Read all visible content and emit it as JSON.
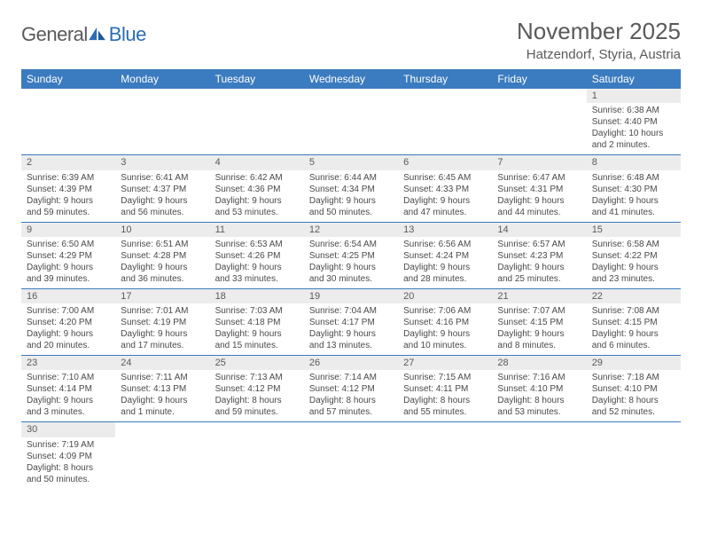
{
  "logo": {
    "general": "General",
    "blue": "Blue"
  },
  "header": {
    "month": "November 2025",
    "location": "Hatzendorf, Styria, Austria"
  },
  "colors": {
    "header_bg": "#3b7bbf",
    "header_fg": "#ffffff",
    "daynum_bg": "#ececec",
    "text": "#4a4a4a",
    "border": "#3b7bbf"
  },
  "dayNames": [
    "Sunday",
    "Monday",
    "Tuesday",
    "Wednesday",
    "Thursday",
    "Friday",
    "Saturday"
  ],
  "weeks": [
    [
      null,
      null,
      null,
      null,
      null,
      null,
      {
        "n": "1",
        "sr": "6:38 AM",
        "ss": "4:40 PM",
        "dl": "Daylight: 10 hours and 2 minutes."
      }
    ],
    [
      {
        "n": "2",
        "sr": "6:39 AM",
        "ss": "4:39 PM",
        "dl": "Daylight: 9 hours and 59 minutes."
      },
      {
        "n": "3",
        "sr": "6:41 AM",
        "ss": "4:37 PM",
        "dl": "Daylight: 9 hours and 56 minutes."
      },
      {
        "n": "4",
        "sr": "6:42 AM",
        "ss": "4:36 PM",
        "dl": "Daylight: 9 hours and 53 minutes."
      },
      {
        "n": "5",
        "sr": "6:44 AM",
        "ss": "4:34 PM",
        "dl": "Daylight: 9 hours and 50 minutes."
      },
      {
        "n": "6",
        "sr": "6:45 AM",
        "ss": "4:33 PM",
        "dl": "Daylight: 9 hours and 47 minutes."
      },
      {
        "n": "7",
        "sr": "6:47 AM",
        "ss": "4:31 PM",
        "dl": "Daylight: 9 hours and 44 minutes."
      },
      {
        "n": "8",
        "sr": "6:48 AM",
        "ss": "4:30 PM",
        "dl": "Daylight: 9 hours and 41 minutes."
      }
    ],
    [
      {
        "n": "9",
        "sr": "6:50 AM",
        "ss": "4:29 PM",
        "dl": "Daylight: 9 hours and 39 minutes."
      },
      {
        "n": "10",
        "sr": "6:51 AM",
        "ss": "4:28 PM",
        "dl": "Daylight: 9 hours and 36 minutes."
      },
      {
        "n": "11",
        "sr": "6:53 AM",
        "ss": "4:26 PM",
        "dl": "Daylight: 9 hours and 33 minutes."
      },
      {
        "n": "12",
        "sr": "6:54 AM",
        "ss": "4:25 PM",
        "dl": "Daylight: 9 hours and 30 minutes."
      },
      {
        "n": "13",
        "sr": "6:56 AM",
        "ss": "4:24 PM",
        "dl": "Daylight: 9 hours and 28 minutes."
      },
      {
        "n": "14",
        "sr": "6:57 AM",
        "ss": "4:23 PM",
        "dl": "Daylight: 9 hours and 25 minutes."
      },
      {
        "n": "15",
        "sr": "6:58 AM",
        "ss": "4:22 PM",
        "dl": "Daylight: 9 hours and 23 minutes."
      }
    ],
    [
      {
        "n": "16",
        "sr": "7:00 AM",
        "ss": "4:20 PM",
        "dl": "Daylight: 9 hours and 20 minutes."
      },
      {
        "n": "17",
        "sr": "7:01 AM",
        "ss": "4:19 PM",
        "dl": "Daylight: 9 hours and 17 minutes."
      },
      {
        "n": "18",
        "sr": "7:03 AM",
        "ss": "4:18 PM",
        "dl": "Daylight: 9 hours and 15 minutes."
      },
      {
        "n": "19",
        "sr": "7:04 AM",
        "ss": "4:17 PM",
        "dl": "Daylight: 9 hours and 13 minutes."
      },
      {
        "n": "20",
        "sr": "7:06 AM",
        "ss": "4:16 PM",
        "dl": "Daylight: 9 hours and 10 minutes."
      },
      {
        "n": "21",
        "sr": "7:07 AM",
        "ss": "4:15 PM",
        "dl": "Daylight: 9 hours and 8 minutes."
      },
      {
        "n": "22",
        "sr": "7:08 AM",
        "ss": "4:15 PM",
        "dl": "Daylight: 9 hours and 6 minutes."
      }
    ],
    [
      {
        "n": "23",
        "sr": "7:10 AM",
        "ss": "4:14 PM",
        "dl": "Daylight: 9 hours and 3 minutes."
      },
      {
        "n": "24",
        "sr": "7:11 AM",
        "ss": "4:13 PM",
        "dl": "Daylight: 9 hours and 1 minute."
      },
      {
        "n": "25",
        "sr": "7:13 AM",
        "ss": "4:12 PM",
        "dl": "Daylight: 8 hours and 59 minutes."
      },
      {
        "n": "26",
        "sr": "7:14 AM",
        "ss": "4:12 PM",
        "dl": "Daylight: 8 hours and 57 minutes."
      },
      {
        "n": "27",
        "sr": "7:15 AM",
        "ss": "4:11 PM",
        "dl": "Daylight: 8 hours and 55 minutes."
      },
      {
        "n": "28",
        "sr": "7:16 AM",
        "ss": "4:10 PM",
        "dl": "Daylight: 8 hours and 53 minutes."
      },
      {
        "n": "29",
        "sr": "7:18 AM",
        "ss": "4:10 PM",
        "dl": "Daylight: 8 hours and 52 minutes."
      }
    ],
    [
      {
        "n": "30",
        "sr": "7:19 AM",
        "ss": "4:09 PM",
        "dl": "Daylight: 8 hours and 50 minutes."
      },
      null,
      null,
      null,
      null,
      null,
      null
    ]
  ],
  "labels": {
    "sunrise": "Sunrise: ",
    "sunset": "Sunset: "
  }
}
